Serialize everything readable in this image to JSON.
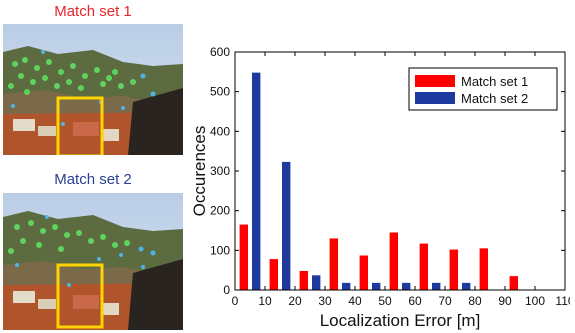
{
  "panels": [
    {
      "caption": "Match set 1",
      "caption_color": "#e8262a"
    },
    {
      "caption": "Match set 2",
      "caption_color": "#2b3f96"
    }
  ],
  "chart_data": {
    "type": "bar",
    "xlabel": "Localization Error [m]",
    "ylabel": "Occurences",
    "xlim": [
      0,
      110
    ],
    "ylim": [
      0,
      600
    ],
    "xticks": [
      0,
      10,
      20,
      30,
      40,
      50,
      60,
      70,
      80,
      90,
      100,
      110
    ],
    "yticks": [
      0,
      100,
      200,
      300,
      400,
      500,
      600
    ],
    "grid": false,
    "legend_position": "top-right",
    "series": [
      {
        "name": "Match set 1",
        "color": "#ff0000",
        "x": [
          5,
          15,
          25,
          35,
          45,
          55,
          65,
          75,
          85,
          95,
          105
        ],
        "values": [
          165,
          78,
          48,
          130,
          87,
          145,
          117,
          102,
          105,
          35,
          0
        ]
      },
      {
        "name": "Match set 2",
        "color": "#1f3a9e",
        "x": [
          5,
          15,
          25,
          35,
          45,
          55,
          65,
          75,
          85,
          95,
          105
        ],
        "values": [
          548,
          323,
          37,
          18,
          18,
          18,
          18,
          18,
          0,
          0,
          0
        ]
      }
    ]
  }
}
